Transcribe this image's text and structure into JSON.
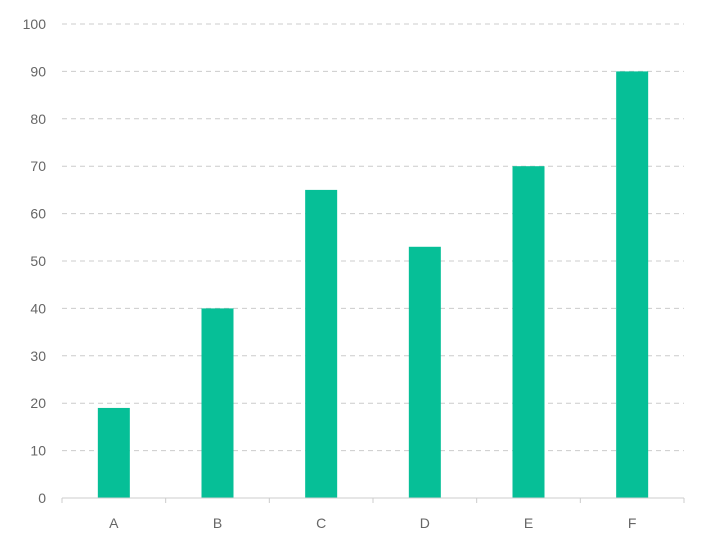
{
  "chart_data": {
    "type": "bar",
    "title": "",
    "xlabel": "",
    "ylabel": "",
    "categories": [
      "A",
      "B",
      "C",
      "D",
      "E",
      "F"
    ],
    "values": [
      19,
      40,
      65,
      53,
      70,
      90
    ],
    "ylim": [
      0,
      100
    ],
    "yticks": [
      "0",
      "10",
      "20",
      "30",
      "40",
      "50",
      "60",
      "70",
      "80",
      "90",
      "100"
    ],
    "grid": true,
    "grid_style": "dashed",
    "legend": "none",
    "colors": {
      "bar": "#06bf97",
      "grid": "#cccccc",
      "axis": "#cccccc",
      "text": "#666666"
    }
  }
}
